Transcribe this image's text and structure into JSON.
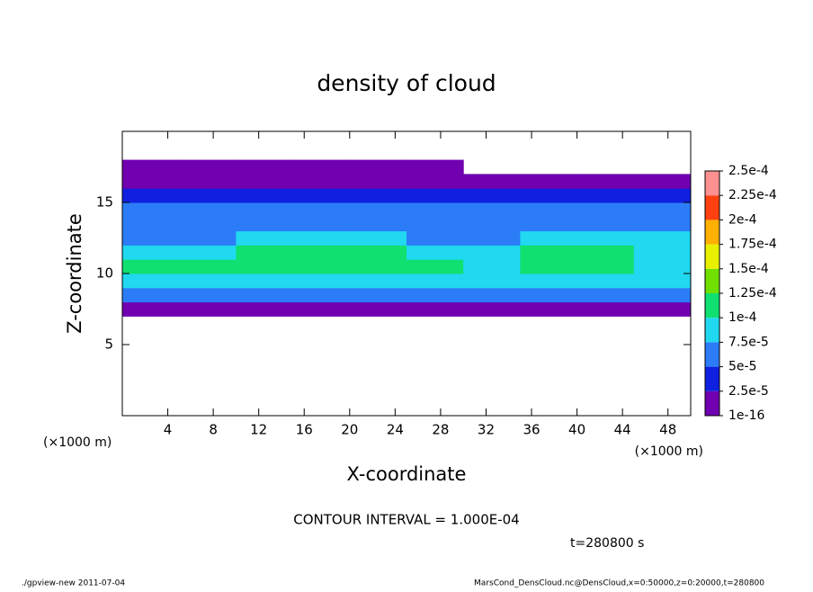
{
  "chart_data": {
    "type": "heatmap",
    "title": "density of cloud",
    "x_label": "X-coordinate",
    "y_label": "Z-coordinate",
    "x_unit": "(×1000 m)",
    "y_unit": "(×1000 m)",
    "contour_note": "CONTOUR INTERVAL = 1.000E-04",
    "time_note": "t=280800 s",
    "footer_left": "./gpview-new   2011-07-04",
    "footer_right": "MarsCond_DensCloud.nc@DensCloud,x=0:50000,z=0:20000,t=280800",
    "xlim": [
      0,
      50
    ],
    "ylim": [
      0,
      20
    ],
    "xticks": [
      4,
      8,
      12,
      16,
      20,
      24,
      28,
      32,
      36,
      40,
      44,
      48
    ],
    "yticks": [
      5,
      10,
      15
    ],
    "x_edges": [
      0,
      5,
      10,
      15,
      20,
      25,
      30,
      35,
      40,
      45,
      50
    ],
    "z_edges": [
      7,
      8,
      9,
      10,
      11,
      12,
      13,
      14,
      15,
      16,
      17,
      18
    ],
    "values": [
      [
        1.5e-05,
        1.5e-05,
        1.5e-05,
        1.5e-05,
        1.5e-05,
        1.5e-05,
        1.5e-05,
        1.5e-05,
        1.5e-05,
        1.5e-05
      ],
      [
        5e-05,
        5e-05,
        5e-05,
        5e-05,
        5e-05,
        5e-05,
        5e-05,
        5e-05,
        5e-05,
        5e-05
      ],
      [
        8.5e-05,
        8.5e-05,
        8.5e-05,
        8.5e-05,
        8.5e-05,
        8.5e-05,
        8e-05,
        8e-05,
        8e-05,
        8e-05
      ],
      [
        0.00011,
        0.000105,
        0.00011,
        0.000115,
        0.00011,
        0.0001,
        8e-05,
        0.000105,
        0.0001,
        9e-05
      ],
      [
        8e-05,
        9e-05,
        0.000105,
        0.00011,
        0.0001,
        8e-05,
        8e-05,
        0.00011,
        0.000105,
        9e-05
      ],
      [
        7e-05,
        7e-05,
        8e-05,
        8e-05,
        7.5e-05,
        7e-05,
        7e-05,
        9e-05,
        8e-05,
        7.5e-05
      ],
      [
        6e-05,
        6e-05,
        6e-05,
        6e-05,
        6e-05,
        6e-05,
        6e-05,
        6e-05,
        6e-05,
        6e-05
      ],
      [
        5e-05,
        5e-05,
        5e-05,
        5e-05,
        5e-05,
        5e-05,
        5e-05,
        5e-05,
        5e-05,
        5e-05
      ],
      [
        3.5e-05,
        3.5e-05,
        3.5e-05,
        3.5e-05,
        3.5e-05,
        3.5e-05,
        3.5e-05,
        3.5e-05,
        3.5e-05,
        3.5e-05
      ],
      [
        1.5e-05,
        1.5e-05,
        1.5e-05,
        1.5e-05,
        1.5e-05,
        1.5e-05,
        1.5e-05,
        1.5e-05,
        1.5e-05,
        1.5e-05
      ],
      [
        1e-05,
        1e-05,
        1e-05,
        1e-05,
        1e-05,
        1e-05,
        null,
        null,
        null,
        null
      ]
    ],
    "colorbar": {
      "ticks": [
        {
          "value": 1e-16,
          "label": "1e-16"
        },
        {
          "value": 2.5e-05,
          "label": "2.5e-5"
        },
        {
          "value": 5e-05,
          "label": "5e-5"
        },
        {
          "value": 7.5e-05,
          "label": "7.5e-5"
        },
        {
          "value": 0.0001,
          "label": "1e-4"
        },
        {
          "value": 0.000125,
          "label": "1.25e-4"
        },
        {
          "value": 0.00015,
          "label": "1.5e-4"
        },
        {
          "value": 0.000175,
          "label": "1.75e-4"
        },
        {
          "value": 0.0002,
          "label": "2e-4"
        },
        {
          "value": 0.000225,
          "label": "2.25e-4"
        },
        {
          "value": 0.00025,
          "label": "2.5e-4"
        }
      ],
      "colors": [
        "#7000b0",
        "#1020e0",
        "#2c7cf8",
        "#20d8f0",
        "#10e070",
        "#70e000",
        "#e8f000",
        "#ffb000",
        "#ff4010",
        "#ff9090"
      ]
    }
  }
}
